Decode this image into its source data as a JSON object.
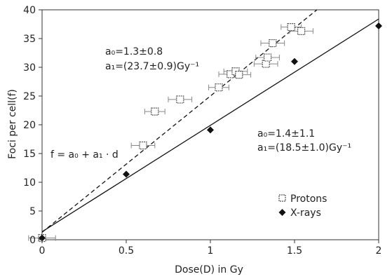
{
  "chart_data": {
    "type": "scatter",
    "xlabel": "Dose(D) in Gy",
    "ylabel": "Foci per cell(f)",
    "xlim": [
      0,
      2
    ],
    "ylim": [
      0,
      40
    ],
    "x_ticks": [
      0,
      0.5,
      1,
      1.5,
      2
    ],
    "x_tick_labels": [
      "0",
      "0.5",
      "1",
      "1.5",
      "2"
    ],
    "y_ticks": [
      0,
      5,
      10,
      15,
      20,
      25,
      30,
      35,
      40
    ],
    "y_tick_labels": [
      "0",
      "5",
      "10",
      "15",
      "20",
      "25",
      "30",
      "35",
      "40"
    ],
    "grid": false,
    "legend_position": "bottom-right",
    "legend": [
      {
        "label": "Protons",
        "marker": "open-square"
      },
      {
        "label": "X-rays",
        "marker": "filled-diamond"
      }
    ],
    "series": [
      {
        "name": "Protons",
        "marker": "open-square",
        "x": [
          0.0,
          0.6,
          0.67,
          0.82,
          1.05,
          1.12,
          1.15,
          1.17,
          1.33,
          1.34,
          1.37,
          1.48,
          1.54
        ],
        "y": [
          0.3,
          16.4,
          22.3,
          24.4,
          26.5,
          28.8,
          29.3,
          28.7,
          30.6,
          31.7,
          34.2,
          37.0,
          36.3
        ],
        "x_error": [
          0.08,
          0.07,
          0.06,
          0.07,
          0.06,
          0.07,
          0.07,
          0.07,
          0.07,
          0.07,
          0.07,
          0.06,
          0.07
        ]
      },
      {
        "name": "X-rays",
        "marker": "filled-diamond",
        "x": [
          0.0,
          0.5,
          1.0,
          1.5,
          2.0
        ],
        "y": [
          0.3,
          11.4,
          19.1,
          31.0,
          37.2
        ]
      }
    ],
    "fits": [
      {
        "name": "Protons fit",
        "style": "dashed",
        "a0": 1.3,
        "a1": 23.7,
        "x_range": [
          0,
          2.0
        ]
      },
      {
        "name": "X-rays fit",
        "style": "solid",
        "a0": 1.4,
        "a1": 18.5,
        "x_range": [
          0,
          2.0
        ]
      }
    ],
    "annotations": {
      "protons_a0": "a₀=1.3±0.8",
      "protons_a1": "a₁=(23.7±0.9)Gy⁻¹",
      "xrays_a0": "a₀=1.4±1.1",
      "xrays_a1": "a₁=(18.5±1.0)Gy⁻¹",
      "formula": "f = a₀ + a₁ · d"
    }
  }
}
